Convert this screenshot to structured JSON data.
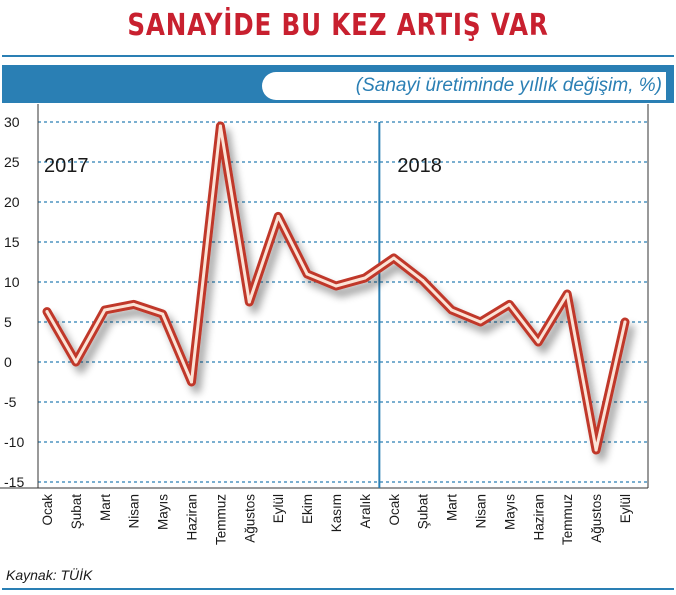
{
  "title": "SANAYİDE BU KEZ ARTIŞ VAR",
  "subtitle": "(Sanayi üretiminde yıllık değişim, %)",
  "source": "Kaynak: TÜİK",
  "colors": {
    "title": "#c8202f",
    "accent_blue": "#2a7fb4",
    "line_outer": "#c0392b",
    "line_inner": "#fbe3d6",
    "grid": "#2a7fb4"
  },
  "chart_data": {
    "type": "line",
    "title": "SANAYİDE BU KEZ ARTIŞ VAR",
    "subtitle": "(Sanayi üretiminde yıllık değişim, %)",
    "xlabel": "",
    "ylabel": "",
    "ylim": [
      -15,
      30
    ],
    "yticks": [
      30,
      25,
      20,
      15,
      10,
      5,
      0,
      -5,
      -10,
      -15
    ],
    "grid": true,
    "year_labels": [
      "2017",
      "2018"
    ],
    "categories": [
      "Ocak",
      "Şubat",
      "Mart",
      "Nisan",
      "Mayıs",
      "Haziran",
      "Temmuz",
      "Ağustos",
      "Eylül",
      "Ekim",
      "Kasım",
      "Aralık",
      "Ocak",
      "Şubat",
      "Mart",
      "Nisan",
      "Mayıs",
      "Haziran",
      "Temmuz",
      "Ağustos",
      "Eylül"
    ],
    "series": [
      {
        "values": [
          6.3,
          0.0,
          6.5,
          7.2,
          6.0,
          -2.5,
          29.5,
          7.5,
          18.2,
          11.0,
          9.5,
          10.5,
          13.0,
          10.2,
          6.5,
          5.0,
          7.2,
          2.5,
          8.5,
          -11.0,
          5.0
        ]
      }
    ]
  }
}
